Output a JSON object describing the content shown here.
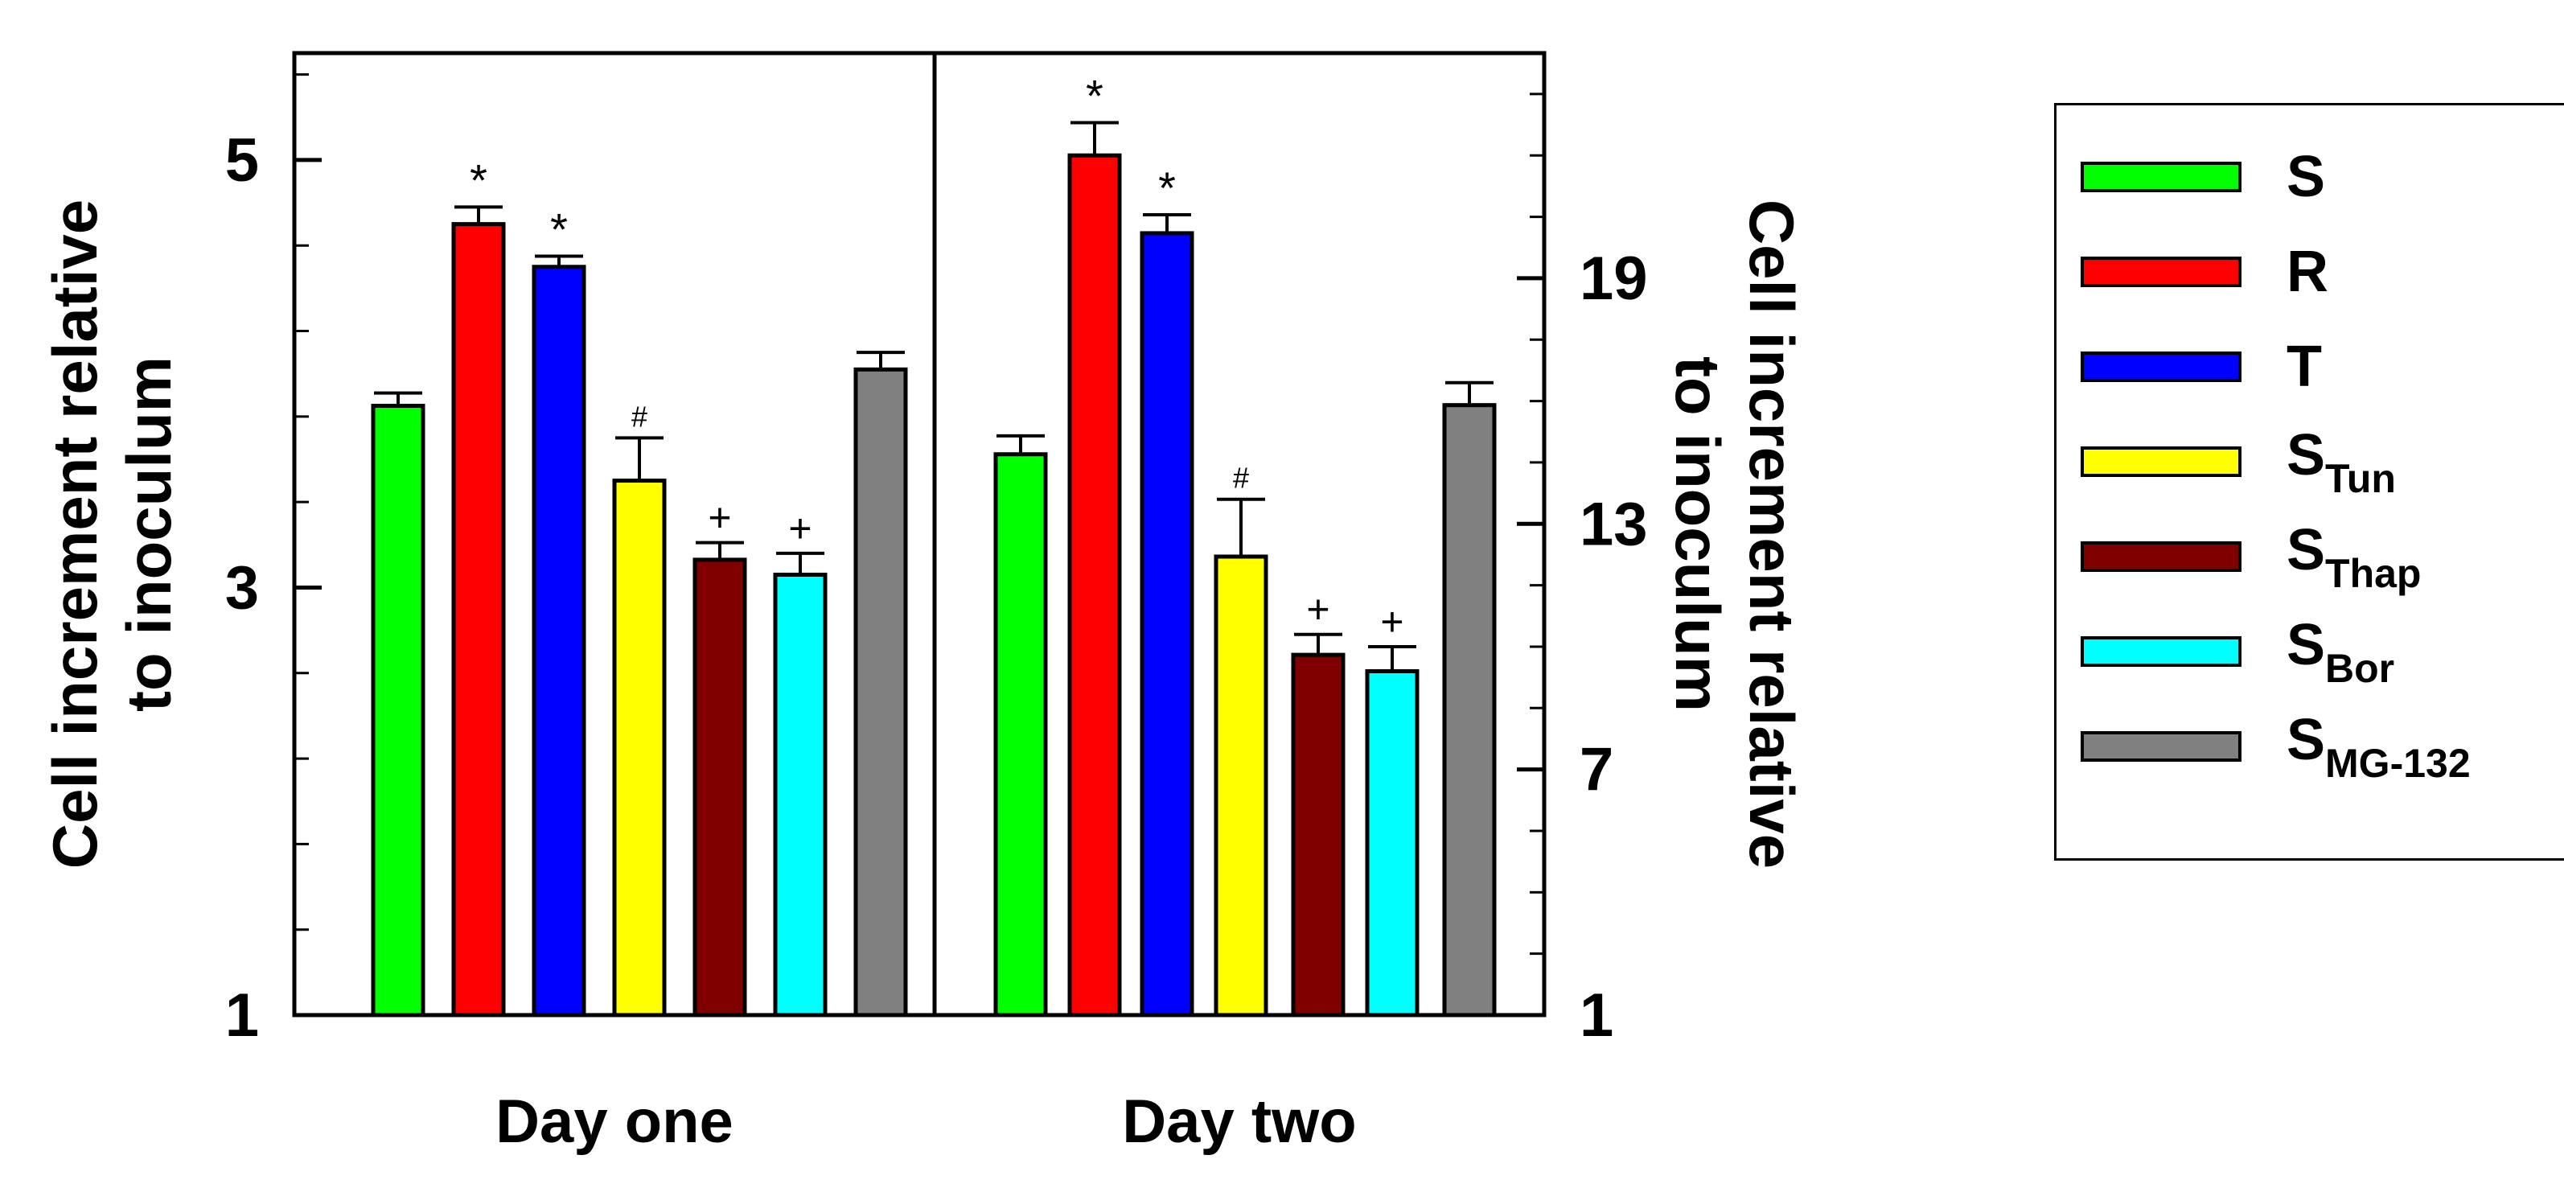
{
  "chart_data": {
    "type": "bar",
    "panels": [
      {
        "xlabel": "Day one",
        "ylabel": "Cell increment relative\nto inoculum",
        "ylim": [
          1,
          5.5
        ],
        "yticks": [
          "1",
          "3",
          "5"
        ],
        "values": [
          3.85,
          4.7,
          4.5,
          3.5,
          3.13,
          3.06,
          4.02
        ],
        "errors": [
          0.06,
          0.08,
          0.05,
          0.2,
          0.08,
          0.1,
          0.08
        ],
        "annotations": [
          "",
          "*",
          "*",
          "#",
          "+",
          "+",
          ""
        ]
      },
      {
        "xlabel": "Day two",
        "ylabel": "Cell increment relative\nto inoculum",
        "ylim": [
          1,
          24.5
        ],
        "yticks": [
          "1",
          "7",
          "13",
          "19"
        ],
        "values": [
          14.7,
          22.0,
          20.1,
          12.2,
          9.8,
          9.4,
          15.9
        ],
        "errors": [
          0.45,
          0.8,
          0.45,
          1.4,
          0.5,
          0.6,
          0.55
        ],
        "annotations": [
          "",
          "*",
          "*",
          "#",
          "+",
          "+",
          ""
        ]
      }
    ],
    "series": [
      {
        "name": "S",
        "sub": "",
        "color": "#00ff00"
      },
      {
        "name": "R",
        "sub": "",
        "color": "#ff0000"
      },
      {
        "name": "T",
        "sub": "",
        "color": "#0000ff"
      },
      {
        "name": "S",
        "sub": "Tun",
        "color": "#ffff00"
      },
      {
        "name": "S",
        "sub": "Thap",
        "color": "#800000"
      },
      {
        "name": "S",
        "sub": "Bor",
        "color": "#00ffff"
      },
      {
        "name": "S",
        "sub": "MG-132",
        "color": "#808080"
      }
    ],
    "legend": "right",
    "grid": false
  }
}
